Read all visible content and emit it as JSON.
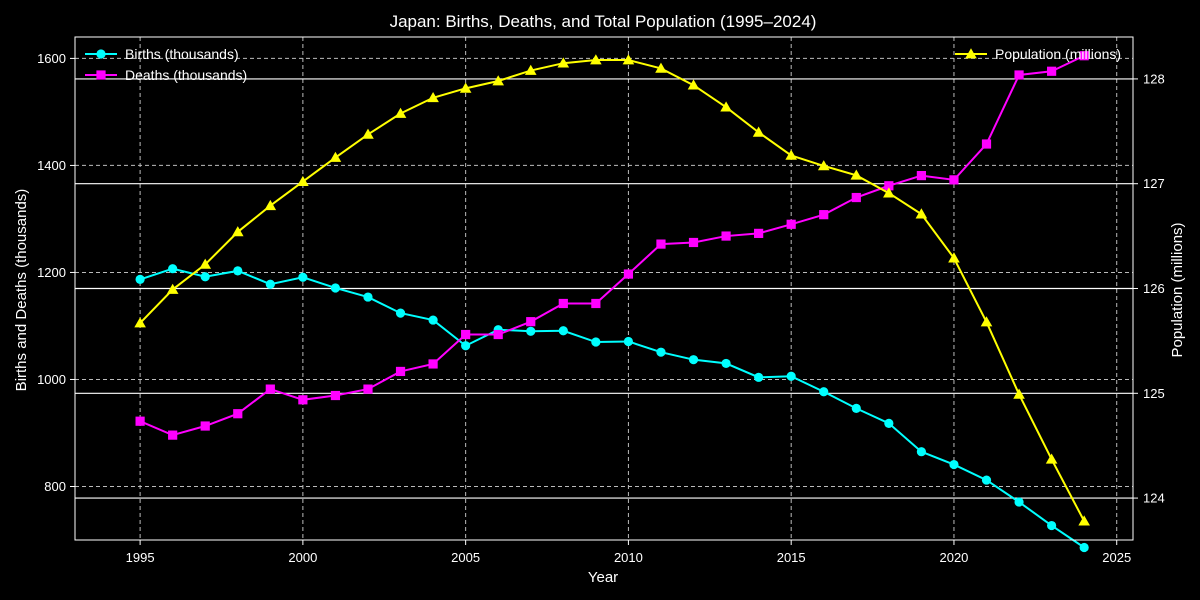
{
  "chart_data": {
    "type": "line",
    "title": "Japan: Births, Deaths, and Total Population (1995–2024)",
    "xlabel": "Year",
    "ylabel_left": "Births and Deaths (thousands)",
    "ylabel_right": "Population (millions)",
    "x": [
      1995,
      1996,
      1997,
      1998,
      1999,
      2000,
      2001,
      2002,
      2003,
      2004,
      2005,
      2006,
      2007,
      2008,
      2009,
      2010,
      2011,
      2012,
      2013,
      2014,
      2015,
      2016,
      2017,
      2018,
      2019,
      2020,
      2021,
      2022,
      2023,
      2024
    ],
    "xlim": [
      1993,
      2025.5
    ],
    "ylim_left": [
      700,
      1640
    ],
    "ylim_right": [
      123.6,
      128.4
    ],
    "x_ticks": [
      1995,
      2000,
      2005,
      2010,
      2015,
      2020,
      2025
    ],
    "y_ticks_left": [
      800,
      1000,
      1200,
      1400,
      1600
    ],
    "y_ticks_right": [
      124,
      125,
      126,
      127,
      128
    ],
    "grid": true,
    "series": [
      {
        "name": "Births (thousands)",
        "axis": "left",
        "color": "#00ffff",
        "marker": "circle",
        "values": [
          1187,
          1207,
          1192,
          1203,
          1178,
          1191,
          1171,
          1154,
          1124,
          1111,
          1063,
          1093,
          1090,
          1091,
          1070,
          1071,
          1051,
          1037,
          1030,
          1004,
          1006,
          977,
          946,
          918,
          865,
          841,
          812,
          771,
          727,
          686
        ]
      },
      {
        "name": "Deaths (thousands)",
        "axis": "left",
        "color": "#ff00ff",
        "marker": "square",
        "values": [
          922,
          896,
          913,
          936,
          982,
          962,
          970,
          982,
          1015,
          1029,
          1084,
          1084,
          1108,
          1142,
          1142,
          1197,
          1253,
          1256,
          1268,
          1273,
          1290,
          1308,
          1340,
          1362,
          1381,
          1373,
          1440,
          1569,
          1576,
          1605
        ]
      },
      {
        "name": "Population (millions)",
        "axis": "right",
        "color": "#ffff00",
        "marker": "triangle",
        "values": [
          125.67,
          125.99,
          126.23,
          126.54,
          126.79,
          127.02,
          127.25,
          127.47,
          127.67,
          127.82,
          127.91,
          127.98,
          128.08,
          128.15,
          128.18,
          128.18,
          128.1,
          127.94,
          127.73,
          127.49,
          127.27,
          127.17,
          127.08,
          126.91,
          126.71,
          126.29,
          125.68,
          124.99,
          124.37,
          123.78
        ]
      }
    ],
    "legend_left": "top-left",
    "legend_right": "top-right"
  }
}
